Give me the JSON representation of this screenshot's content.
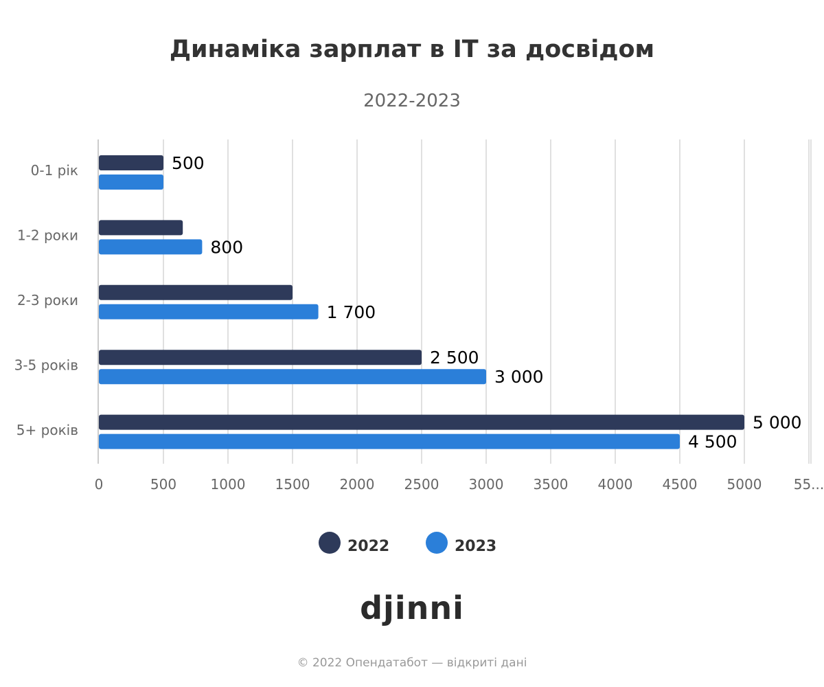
{
  "header": {
    "title": "Динаміка зарплат в IT за досвідом",
    "subtitle": "2022-2023"
  },
  "chart_data": {
    "type": "bar",
    "orientation": "horizontal",
    "categories": [
      "0-1 рік",
      "1-2 роки",
      "2-3 роки",
      "3-5 років",
      "5+ років"
    ],
    "series": [
      {
        "name": "2022",
        "color": "#2e3a5a",
        "values": [
          500,
          650,
          1500,
          2500,
          5000
        ],
        "labels": [
          "500",
          "",
          "",
          "2 500",
          "5 000"
        ]
      },
      {
        "name": "2023",
        "color": "#2b7fd9",
        "values": [
          500,
          800,
          1700,
          3000,
          4500
        ],
        "labels": [
          "",
          "800",
          "1 700",
          "3 000",
          "4 500"
        ]
      }
    ],
    "x_ticks": [
      "0",
      "500",
      "1000",
      "1500",
      "2000",
      "2500",
      "3000",
      "3500",
      "4000",
      "4500",
      "5000",
      "55..."
    ],
    "xlim": [
      0,
      5500
    ],
    "grid": true,
    "legend": "bottom-center"
  },
  "brand": "djinni",
  "footer": {
    "credit": "© 2022 Опендатабот — відкриті дані"
  }
}
